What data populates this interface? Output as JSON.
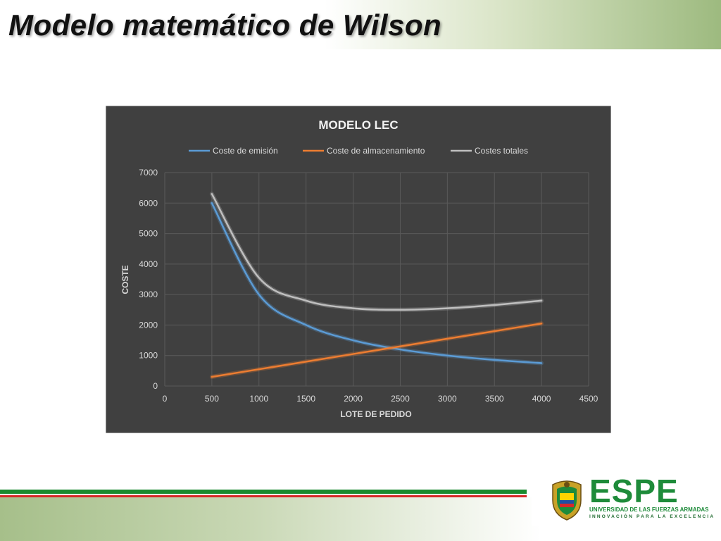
{
  "slide": {
    "title": "Modelo matemático de Wilson"
  },
  "logo": {
    "name": "ESPE",
    "line1": "UNIVERSIDAD DE LAS FUERZAS ARMADAS",
    "line2": "INNOVACIÓN PARA LA EXCELENCIA"
  },
  "chart_data": {
    "type": "line",
    "title": "MODELO LEC",
    "xlabel": "LOTE DE PEDIDO",
    "ylabel": "COSTE",
    "xlim": [
      0,
      4500
    ],
    "ylim": [
      0,
      7000
    ],
    "xticks": [
      "0",
      "500",
      "1000",
      "1500",
      "2000",
      "2500",
      "3000",
      "3500",
      "4000",
      "4500"
    ],
    "yticks": [
      "0",
      "1000",
      "2000",
      "3000",
      "4000",
      "5000",
      "6000",
      "7000"
    ],
    "grid": true,
    "legend_position": "top",
    "background": "#404040",
    "x": [
      500,
      1000,
      1500,
      2000,
      2500,
      3000,
      3500,
      4000
    ],
    "series": [
      {
        "name": "Coste de emisión",
        "color": "#5b9bd5",
        "values": [
          6000,
          3000,
          2000,
          1500,
          1200,
          1000,
          857,
          750
        ]
      },
      {
        "name": "Coste de almacenamiento",
        "color": "#ed7d31",
        "values": [
          300,
          550,
          800,
          1050,
          1300,
          1550,
          1800,
          2050
        ]
      },
      {
        "name": "Costes totales",
        "color": "#bfbfbf",
        "values": [
          6300,
          3550,
          2800,
          2550,
          2500,
          2550,
          2657,
          2800
        ]
      }
    ]
  }
}
